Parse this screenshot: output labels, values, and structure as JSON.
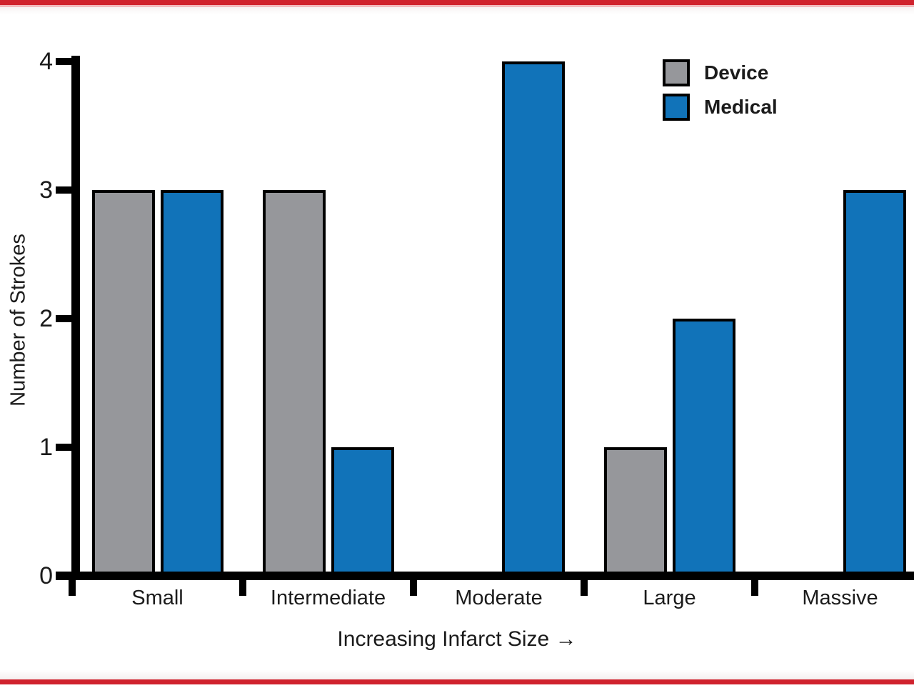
{
  "colors": {
    "accent_red": "#d0222d",
    "device_gray": "#96979b",
    "medical_blue": "#1173b9",
    "axis_black": "#000000",
    "text": "#1b1b1b"
  },
  "chart_data": {
    "type": "bar",
    "title": "",
    "categories": [
      "Small",
      "Intermediate",
      "Moderate",
      "Large",
      "Massive"
    ],
    "series": [
      {
        "name": "Device",
        "color_key": "device_gray",
        "values": [
          3,
          3,
          0,
          1,
          0
        ]
      },
      {
        "name": "Medical",
        "color_key": "medical_blue",
        "values": [
          3,
          1,
          4,
          2,
          3
        ]
      }
    ],
    "xlabel": "Increasing Infarct Size →",
    "ylabel": "Number of Strokes",
    "ylim": [
      0,
      4
    ],
    "yticks": [
      0,
      1,
      2,
      3,
      4
    ],
    "grid": false,
    "legend_position": "top-right"
  },
  "legend": {
    "items": [
      {
        "label": "Device"
      },
      {
        "label": "Medical"
      }
    ]
  }
}
